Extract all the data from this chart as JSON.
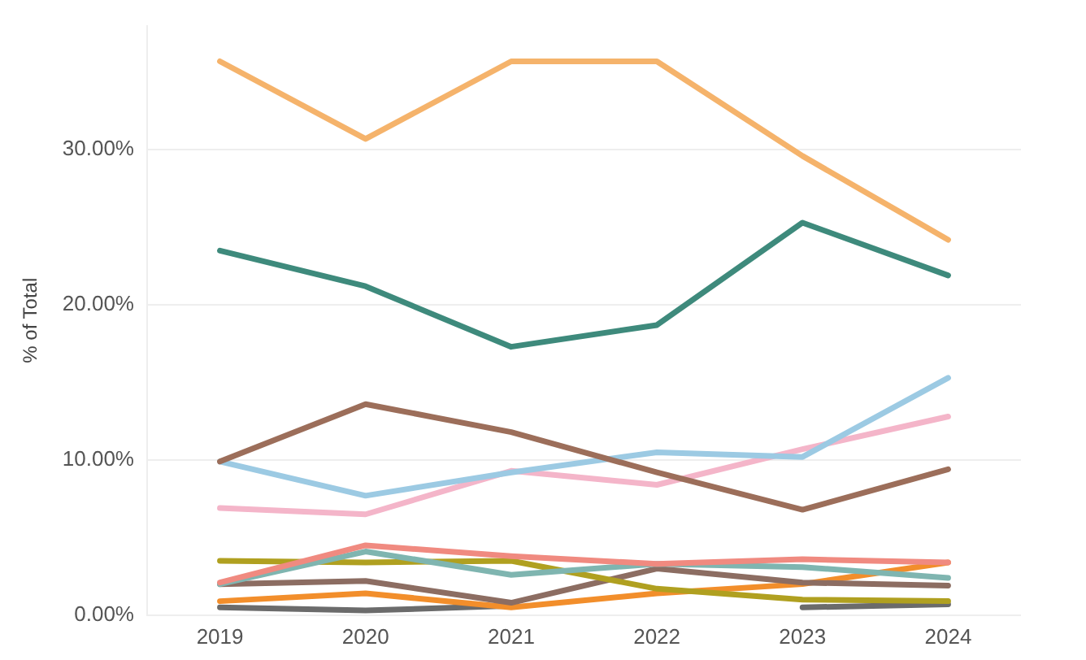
{
  "chart_data": {
    "type": "line",
    "ylabel": "% of Total",
    "categories": [
      "2019",
      "2020",
      "2021",
      "2022",
      "2023",
      "2024"
    ],
    "series": [
      {
        "color": "#f5b36b",
        "values": [
          35.7,
          30.7,
          35.7,
          35.7,
          29.6,
          24.2
        ]
      },
      {
        "color": "#3e8a7c",
        "values": [
          23.5,
          21.2,
          17.3,
          18.7,
          25.3,
          21.9
        ]
      },
      {
        "color": "#9c6e5a",
        "values": [
          9.9,
          13.6,
          11.8,
          9.2,
          6.8,
          9.4
        ]
      },
      {
        "color": "#9ccae3",
        "values": [
          9.9,
          7.7,
          9.2,
          10.5,
          10.2,
          15.3
        ]
      },
      {
        "color": "#f4b5c9",
        "values": [
          6.9,
          6.5,
          9.3,
          8.4,
          10.7,
          12.8
        ]
      },
      {
        "color": "#f08a80",
        "values": [
          2.1,
          4.5,
          3.8,
          3.3,
          3.6,
          3.4
        ]
      },
      {
        "color": "#7fb5b0",
        "values": [
          2.0,
          4.1,
          2.6,
          3.3,
          3.1,
          2.4
        ]
      },
      {
        "color": "#b0a020",
        "values": [
          3.5,
          3.4,
          3.5,
          1.7,
          1.0,
          0.9
        ]
      },
      {
        "color": "#8c6d62",
        "values": [
          2.0,
          2.2,
          0.8,
          3.0,
          2.1,
          1.9
        ]
      },
      {
        "color": "#f28e2b",
        "values": [
          0.9,
          1.4,
          0.5,
          1.4,
          2.0,
          3.4
        ]
      },
      {
        "color": "#6b6b6b",
        "values": [
          0.5,
          0.3,
          0.6,
          null,
          0.5,
          0.7
        ]
      }
    ],
    "ylim": [
      0,
      38
    ],
    "yticks": [
      {
        "value": 0,
        "label": "0.00%"
      },
      {
        "value": 10,
        "label": "10.00%"
      },
      {
        "value": 20,
        "label": "20.00%"
      },
      {
        "value": 30,
        "label": "30.00%"
      }
    ],
    "grid": "y",
    "legend": false,
    "marker": "none",
    "line_style": "solid"
  }
}
